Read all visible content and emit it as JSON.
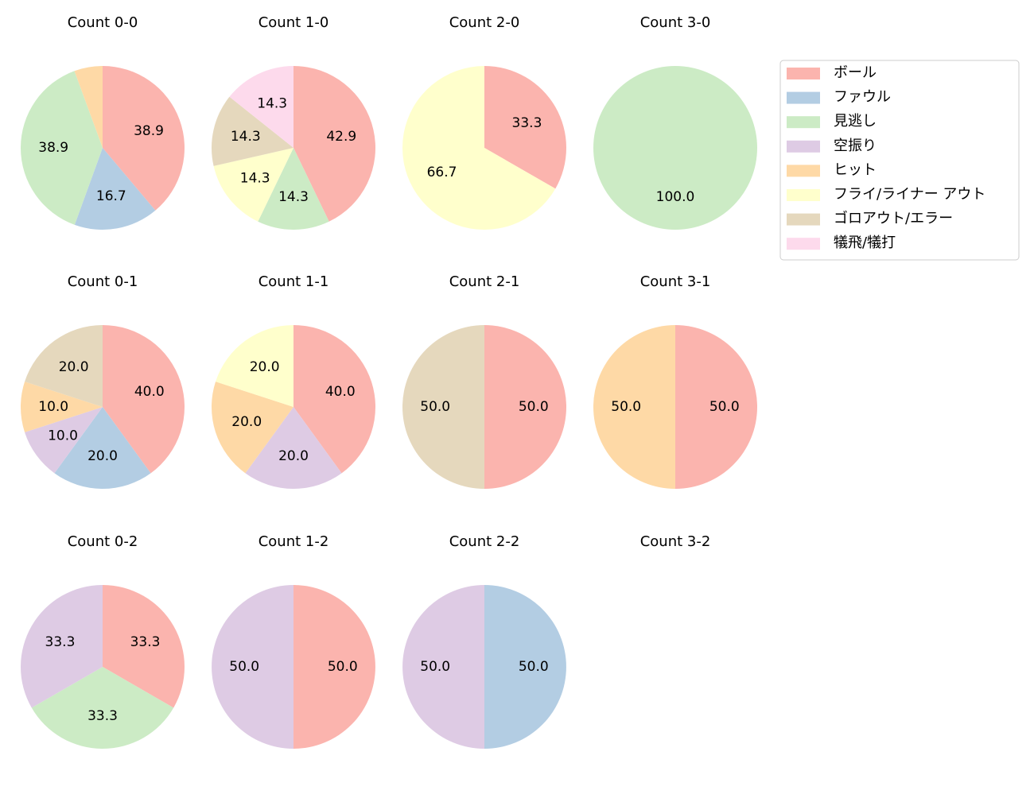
{
  "chart_data": [
    {
      "type": "pie",
      "title": "Count 0-0",
      "categories": [
        "ボール",
        "ファウル",
        "見逃し",
        "ヒット"
      ],
      "values": [
        38.9,
        16.7,
        38.9,
        5.6
      ],
      "value_labels": [
        "38.9",
        "16.7",
        "38.9",
        null
      ],
      "colors": [
        "#fbb4ae",
        "#b3cde3",
        "#ccebc5",
        "#fed9a6"
      ]
    },
    {
      "type": "pie",
      "title": "Count 1-0",
      "categories": [
        "ボール",
        "見逃し",
        "フライ/ライナー アウト",
        "ゴロアウト/エラー",
        "犠飛/犠打"
      ],
      "values": [
        42.9,
        14.3,
        14.3,
        14.3,
        14.3
      ],
      "value_labels": [
        "42.9",
        "14.3",
        "14.3",
        "14.3",
        "14.3"
      ],
      "colors": [
        "#fbb4ae",
        "#ccebc5",
        "#ffffcc",
        "#e5d8bd",
        "#fddaec"
      ]
    },
    {
      "type": "pie",
      "title": "Count 2-0",
      "categories": [
        "ボール",
        "フライ/ライナー アウト"
      ],
      "values": [
        33.3,
        66.7
      ],
      "value_labels": [
        "33.3",
        "66.7"
      ],
      "colors": [
        "#fbb4ae",
        "#ffffcc"
      ]
    },
    {
      "type": "pie",
      "title": "Count 3-0",
      "categories": [
        "見逃し"
      ],
      "values": [
        100
      ],
      "value_labels": [
        "100.0"
      ],
      "colors": [
        "#ccebc5"
      ]
    },
    {
      "type": "pie",
      "title": "Count 0-1",
      "categories": [
        "ボール",
        "ファウル",
        "空振り",
        "ヒット",
        "ゴロアウト/エラー"
      ],
      "values": [
        40,
        20,
        10,
        10,
        20
      ],
      "value_labels": [
        "40.0",
        "20.0",
        "10.0",
        "10.0",
        "20.0"
      ],
      "colors": [
        "#fbb4ae",
        "#b3cde3",
        "#decbe4",
        "#fed9a6",
        "#e5d8bd"
      ]
    },
    {
      "type": "pie",
      "title": "Count 1-1",
      "categories": [
        "ボール",
        "空振り",
        "ヒット",
        "フライ/ライナー アウト"
      ],
      "values": [
        40,
        20,
        20,
        20
      ],
      "value_labels": [
        "40.0",
        "20.0",
        "20.0",
        "20.0"
      ],
      "colors": [
        "#fbb4ae",
        "#decbe4",
        "#fed9a6",
        "#ffffcc"
      ]
    },
    {
      "type": "pie",
      "title": "Count 2-1",
      "categories": [
        "ボール",
        "ゴロアウト/エラー"
      ],
      "values": [
        50,
        50
      ],
      "value_labels": [
        "50.0",
        "50.0"
      ],
      "colors": [
        "#fbb4ae",
        "#e5d8bd"
      ]
    },
    {
      "type": "pie",
      "title": "Count 3-1",
      "categories": [
        "ボール",
        "ヒット"
      ],
      "values": [
        50,
        50
      ],
      "value_labels": [
        "50.0",
        "50.0"
      ],
      "colors": [
        "#fbb4ae",
        "#fed9a6"
      ]
    },
    {
      "type": "pie",
      "title": "Count 0-2",
      "categories": [
        "ボール",
        "見逃し",
        "空振り"
      ],
      "values": [
        33.3,
        33.3,
        33.3
      ],
      "value_labels": [
        "33.3",
        "33.3",
        "33.3"
      ],
      "colors": [
        "#fbb4ae",
        "#ccebc5",
        "#decbe4"
      ]
    },
    {
      "type": "pie",
      "title": "Count 1-2",
      "categories": [
        "ボール",
        "空振り"
      ],
      "values": [
        50,
        50
      ],
      "value_labels": [
        "50.0",
        "50.0"
      ],
      "colors": [
        "#fbb4ae",
        "#decbe4"
      ]
    },
    {
      "type": "pie",
      "title": "Count 2-2",
      "categories": [
        "ファウル",
        "空振り"
      ],
      "values": [
        50,
        50
      ],
      "value_labels": [
        "50.0",
        "50.0"
      ],
      "colors": [
        "#b3cde3",
        "#decbe4"
      ]
    },
    {
      "type": "pie",
      "title": "Count 3-2",
      "categories": [],
      "values": [],
      "value_labels": [],
      "colors": []
    }
  ],
  "legend": {
    "names": [
      "ボール",
      "ファウル",
      "見逃し",
      "空振り",
      "ヒット",
      "フライ/ライナー アウト",
      "ゴロアウト/エラー",
      "犠飛/犠打"
    ],
    "colors": [
      "#fbb4ae",
      "#b3cde3",
      "#ccebc5",
      "#decbe4",
      "#fed9a6",
      "#ffffcc",
      "#e5d8bd",
      "#fddaec"
    ]
  }
}
